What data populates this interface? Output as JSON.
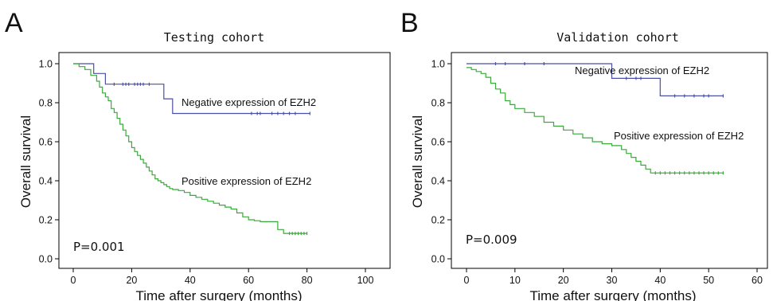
{
  "chart_data": [
    {
      "type": "line",
      "panel": "A",
      "title": "Testing cohort",
      "xlabel": "Time after surgery (months)",
      "ylabel": "Overall survival",
      "xlim": [
        0,
        100
      ],
      "ylim": [
        0,
        1.0
      ],
      "xticks": [
        0,
        20,
        40,
        60,
        80,
        100
      ],
      "yticks": [
        0.0,
        0.2,
        0.4,
        0.6,
        0.8,
        1.0
      ],
      "grid": false,
      "pvalue": "P=0.001",
      "series": [
        {
          "name": "Negative expression of EZH2",
          "color": "#4a4fa8",
          "x": [
            0,
            7,
            11,
            31,
            34,
            81
          ],
          "y": [
            1.0,
            0.95,
            0.895,
            0.82,
            0.745,
            0.745
          ],
          "censored": [
            [
              14,
              0.895
            ],
            [
              17,
              0.895
            ],
            [
              18,
              0.895
            ],
            [
              19,
              0.895
            ],
            [
              21,
              0.895
            ],
            [
              22,
              0.895
            ],
            [
              23,
              0.895
            ],
            [
              24,
              0.895
            ],
            [
              26,
              0.895
            ],
            [
              61,
              0.745
            ],
            [
              63,
              0.745
            ],
            [
              64,
              0.745
            ],
            [
              68,
              0.745
            ],
            [
              70,
              0.745
            ],
            [
              72,
              0.745
            ],
            [
              74,
              0.745
            ],
            [
              76,
              0.745
            ],
            [
              81,
              0.745
            ]
          ]
        },
        {
          "name": "Positive expression of EZH2",
          "color": "#3aaa3a",
          "x": [
            0,
            2,
            4,
            6,
            8,
            9,
            10,
            11,
            12,
            13,
            14,
            15,
            16,
            17,
            18,
            19,
            20,
            21,
            22,
            23,
            24,
            25,
            26,
            27,
            28,
            29,
            30,
            31,
            32,
            33,
            34,
            36,
            38,
            40,
            42,
            44,
            46,
            48,
            50,
            52,
            54,
            56,
            58,
            60,
            62,
            64,
            66,
            68,
            70,
            72,
            80
          ],
          "y": [
            1.0,
            0.985,
            0.97,
            0.94,
            0.91,
            0.88,
            0.85,
            0.83,
            0.81,
            0.77,
            0.75,
            0.72,
            0.69,
            0.66,
            0.63,
            0.6,
            0.57,
            0.55,
            0.53,
            0.51,
            0.49,
            0.47,
            0.45,
            0.43,
            0.41,
            0.4,
            0.39,
            0.38,
            0.37,
            0.36,
            0.355,
            0.35,
            0.34,
            0.325,
            0.315,
            0.305,
            0.295,
            0.285,
            0.275,
            0.265,
            0.255,
            0.235,
            0.215,
            0.2,
            0.195,
            0.19,
            0.19,
            0.19,
            0.15,
            0.13,
            0.13
          ],
          "censored": [
            [
              74,
              0.13
            ],
            [
              75,
              0.13
            ],
            [
              76,
              0.13
            ],
            [
              77,
              0.13
            ],
            [
              78,
              0.13
            ],
            [
              79,
              0.13
            ],
            [
              80,
              0.13
            ]
          ]
        }
      ]
    },
    {
      "type": "line",
      "panel": "B",
      "title": "Validation cohort",
      "xlabel": "Time after surgery (months)",
      "ylabel": "Overall survival",
      "xlim": [
        0,
        60
      ],
      "ylim": [
        0,
        1.0
      ],
      "xticks": [
        0,
        10,
        20,
        30,
        40,
        50,
        60
      ],
      "yticks": [
        0.0,
        0.2,
        0.4,
        0.6,
        0.8,
        1.0
      ],
      "grid": false,
      "pvalue": "P=0.009",
      "series": [
        {
          "name": "Negative expression of EZH2",
          "color": "#4a4fa8",
          "x": [
            0,
            30,
            40,
            53
          ],
          "y": [
            1.0,
            0.925,
            0.835,
            0.835
          ],
          "censored": [
            [
              6,
              1.0
            ],
            [
              8,
              1.0
            ],
            [
              12,
              1.0
            ],
            [
              16,
              1.0
            ],
            [
              33,
              0.925
            ],
            [
              35,
              0.925
            ],
            [
              36,
              0.925
            ],
            [
              43,
              0.835
            ],
            [
              45,
              0.835
            ],
            [
              47,
              0.835
            ],
            [
              49,
              0.835
            ],
            [
              50,
              0.835
            ],
            [
              53,
              0.835
            ]
          ]
        },
        {
          "name": "Positive expression of EZH2",
          "color": "#3aaa3a",
          "x": [
            0,
            1,
            2,
            3,
            4,
            5,
            6,
            7,
            8,
            9,
            10,
            12,
            14,
            16,
            18,
            20,
            22,
            24,
            26,
            28,
            30,
            32,
            33,
            34,
            35,
            36,
            37,
            38,
            53
          ],
          "y": [
            0.98,
            0.97,
            0.96,
            0.95,
            0.93,
            0.9,
            0.87,
            0.85,
            0.81,
            0.79,
            0.77,
            0.75,
            0.73,
            0.7,
            0.68,
            0.66,
            0.64,
            0.62,
            0.6,
            0.59,
            0.58,
            0.56,
            0.54,
            0.52,
            0.5,
            0.48,
            0.46,
            0.44,
            0.44
          ],
          "censored": [
            [
              39,
              0.44
            ],
            [
              40,
              0.44
            ],
            [
              41,
              0.44
            ],
            [
              42,
              0.44
            ],
            [
              43,
              0.44
            ],
            [
              44,
              0.44
            ],
            [
              45,
              0.44
            ],
            [
              46,
              0.44
            ],
            [
              47,
              0.44
            ],
            [
              48,
              0.44
            ],
            [
              49,
              0.44
            ],
            [
              50,
              0.44
            ],
            [
              51,
              0.44
            ],
            [
              52,
              0.44
            ],
            [
              53,
              0.44
            ]
          ]
        }
      ]
    }
  ]
}
